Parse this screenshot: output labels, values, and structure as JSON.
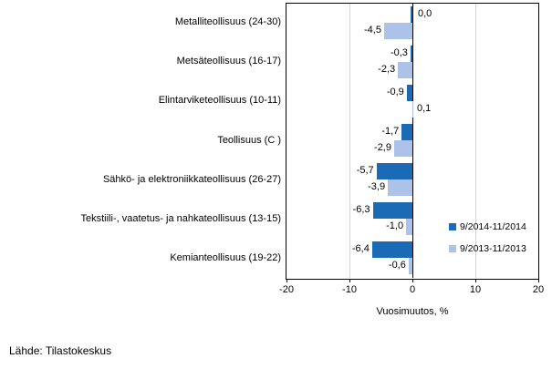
{
  "chart_data": {
    "type": "bar",
    "orientation": "horizontal",
    "title": "",
    "xlabel": "Vuosimuutos, %",
    "xlim": [
      -20,
      20
    ],
    "xticks": [
      -20,
      -10,
      0,
      10,
      20
    ],
    "xtick_labels": [
      "-20",
      "-10",
      "0",
      "10",
      "20"
    ],
    "gridlines": [
      -10,
      10
    ],
    "grid_color": "#d3d3d3",
    "legend_position": "right-middle",
    "categories": [
      "Metalliteollisuus (24-30)",
      "Metsäteollisuus (16-17)",
      "Elintarviketeollisuus (10-11)",
      "Teollisuus (C )",
      "Sähkö- ja elektroniikkateollisuus (26-27)",
      "Tekstiili-, vaatetus- ja nahkateollisuus (13-15)",
      "Kemianteollisuus (19-22)"
    ],
    "series": [
      {
        "name": "9/2014-11/2014",
        "color": "#1b6ab5",
        "values": [
          0.0,
          -0.3,
          -0.9,
          -1.7,
          -5.7,
          -6.3,
          -6.4
        ],
        "labels": [
          "0,0",
          "-0,3",
          "-0,9",
          "-1,7",
          "-5,7",
          "-6,3",
          "-6,4"
        ]
      },
      {
        "name": "9/2013-11/2013",
        "color": "#acc2e8",
        "values": [
          -4.5,
          -2.3,
          0.1,
          -2.9,
          -3.9,
          -1.0,
          -0.6
        ],
        "labels": [
          "-4,5",
          "-2,3",
          "0,1",
          "-2,9",
          "-3,9",
          "-1,0",
          "-0,6"
        ]
      }
    ]
  },
  "source": "Lähde: Tilastokeskus"
}
